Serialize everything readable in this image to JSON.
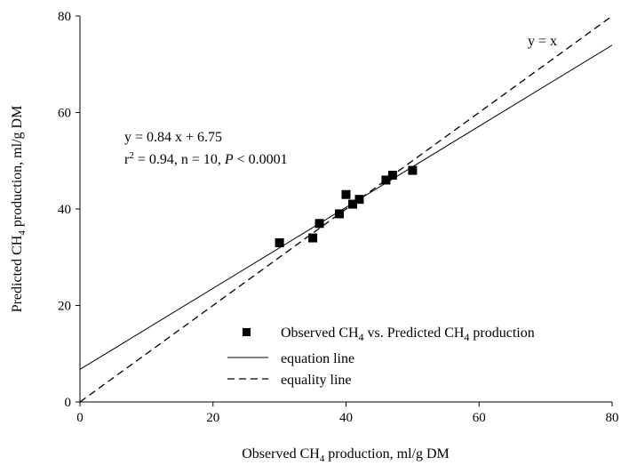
{
  "chart_data": {
    "type": "scatter",
    "xlim": [
      0,
      80
    ],
    "ylim": [
      0,
      80
    ],
    "xticks": [
      0,
      20,
      40,
      60,
      80
    ],
    "yticks": [
      0,
      20,
      40,
      60,
      80
    ],
    "xlabel": {
      "pre": "Observed CH",
      "sub": "4",
      "post": " production, ml/g DM"
    },
    "ylabel": {
      "pre": "Predicted CH",
      "sub": "4",
      "post": " production, ml/g DM"
    },
    "grid": false,
    "legend_position": "bottom-right",
    "series": [
      {
        "name": "Observed CH4 vs. Predicted CH4 production",
        "marker": "square",
        "color": "#000000",
        "points": [
          {
            "x": 30,
            "y": 33
          },
          {
            "x": 35,
            "y": 34
          },
          {
            "x": 36,
            "y": 37
          },
          {
            "x": 39,
            "y": 39
          },
          {
            "x": 40,
            "y": 43
          },
          {
            "x": 41,
            "y": 41
          },
          {
            "x": 42,
            "y": 42
          },
          {
            "x": 46,
            "y": 46
          },
          {
            "x": 47,
            "y": 47
          },
          {
            "x": 50,
            "y": 48
          }
        ]
      }
    ],
    "lines": [
      {
        "name": "equation line",
        "style": "solid",
        "slope": 0.84,
        "intercept": 6.75
      },
      {
        "name": "equality line",
        "style": "dashed",
        "slope": 1,
        "intercept": 0
      }
    ],
    "annotations": {
      "equation": "y = 0.84 x + 6.75",
      "stats": {
        "r": "r",
        "exp": "2",
        "middle": " = 0.94, n = 10, ",
        "p": "P",
        "tail": " < 0.0001"
      },
      "identity": "y = x"
    },
    "legend": {
      "marker_label": {
        "pre": "Observed CH",
        "sub1": "4",
        "mid": " vs. Predicted CH",
        "sub2": "4",
        "post": " production"
      },
      "solid_label": "equation line",
      "dashed_label": "equality line"
    }
  }
}
